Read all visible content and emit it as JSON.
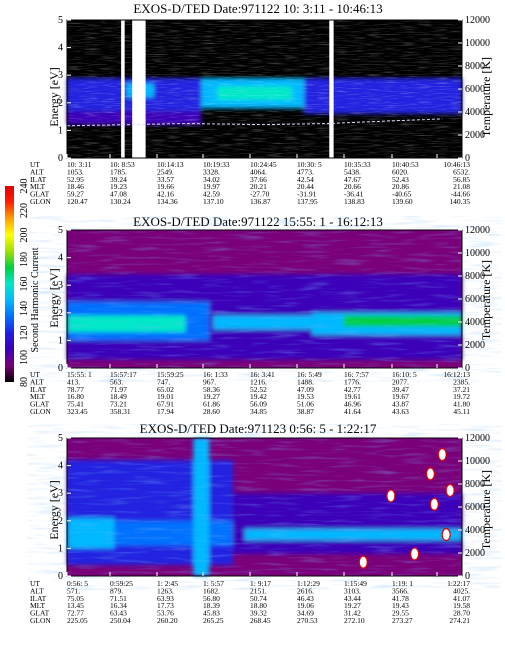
{
  "chart_data": [
    {
      "type": "heatmap",
      "title": "EXOS-D/TED   Date:971122  10: 3:11 - 10:46:13",
      "ylabel": "Energy [eV]",
      "ylim": [
        0,
        5
      ],
      "yticks": [
        "0",
        "1",
        "2",
        "3",
        "4",
        "5"
      ],
      "y2label": "Temperature [K]",
      "y2lim": [
        0,
        12000
      ],
      "y2ticks": [
        "0",
        "2000",
        "4000",
        "6000",
        "8000",
        "10000",
        "12000"
      ],
      "table": {
        "row_labels": [
          "UT",
          "ALT",
          "ILAT",
          "MLT",
          "GLAT",
          "GLON"
        ],
        "columns": [
          [
            "10: 3:11",
            "1053.",
            "52.95",
            "18.46",
            "59.27",
            "120.47"
          ],
          [
            "10: 8:53",
            "1785.",
            "39.24",
            "19.23",
            "47.08",
            "130.24"
          ],
          [
            "10:14:13",
            "2549.",
            "33.57",
            "19.66",
            "42.16",
            "134.36"
          ],
          [
            "10:19:33",
            "3328.",
            "34.02",
            "19.97",
            "42.59",
            "137.10"
          ],
          [
            "10:24:45",
            "4064.",
            "37.66",
            "20.21",
            "-27.70",
            "136.87"
          ],
          [
            "10:30: 5",
            "4773.",
            "42.54",
            "20.44",
            "-31.91",
            "137.95"
          ],
          [
            "10:35:33",
            "5438.",
            "47.67",
            "20.66",
            "-36.41",
            "138.83"
          ],
          [
            "10:40:53",
            "6020.",
            "52.43",
            "20.86",
            "-40.65",
            "139.60"
          ],
          [
            "10:46:13",
            "6532.",
            "56.85",
            "21.08",
            "-44.66",
            "140.35"
          ]
        ]
      },
      "background_level": 80,
      "bands": [
        {
          "x0": 0.0,
          "x1": 0.34,
          "y0": 1.7,
          "y1": 2.9,
          "level": 125
        },
        {
          "x0": 0.15,
          "x1": 0.22,
          "y0": 2.2,
          "y1": 2.7,
          "level": 140
        },
        {
          "x0": 0.34,
          "x1": 0.6,
          "y0": 1.8,
          "y1": 2.9,
          "level": 140
        },
        {
          "x0": 0.38,
          "x1": 0.57,
          "y0": 2.1,
          "y1": 2.6,
          "level": 160
        },
        {
          "x0": 0.6,
          "x1": 1.0,
          "y0": 1.6,
          "y1": 2.9,
          "level": 118
        },
        {
          "x0": 0.0,
          "x1": 0.34,
          "y0": 1.2,
          "y1": 1.7,
          "level": 105
        }
      ],
      "gaps": [
        [
          0.137,
          0.146
        ],
        [
          0.165,
          0.199
        ],
        [
          0.664,
          0.675
        ]
      ],
      "temperature": [
        {
          "x": 0.0,
          "t": 2800
        },
        {
          "x": 0.15,
          "t": 2900
        },
        {
          "x": 0.3,
          "t": 3000
        },
        {
          "x": 0.5,
          "t": 2900
        },
        {
          "x": 0.66,
          "t": 3000
        },
        {
          "x": 0.8,
          "t": 3200
        },
        {
          "x": 0.95,
          "t": 3400
        }
      ]
    },
    {
      "type": "heatmap",
      "title": "EXOS-D/TED   Date:971122  15:55: 1 - 16:12:13",
      "ylabel": "Energy [eV]",
      "ylim": [
        0,
        5
      ],
      "yticks": [
        "0",
        "1",
        "2",
        "3",
        "4",
        "5"
      ],
      "y2label": "Temperature [K]",
      "y2lim": [
        0,
        12000
      ],
      "y2ticks": [
        "0",
        "2000",
        "4000",
        "6000",
        "8000",
        "10000",
        "12000"
      ],
      "table": {
        "row_labels": [
          "UT",
          "ALT",
          "ILAT",
          "MLT",
          "GLAT",
          "GLON"
        ],
        "columns": [
          [
            "15:55: 1",
            "413.",
            "78.77",
            "16.80",
            "75.41",
            "323.45"
          ],
          [
            "15:57:17",
            "563.",
            "71.97",
            "18.49",
            "73.21",
            "358.31"
          ],
          [
            "15:59:25",
            "747.",
            "65.02",
            "19.01",
            "67.91",
            "17.94"
          ],
          [
            "16: 1:33",
            "967.",
            "58.36",
            "19.27",
            "61.86",
            "28.60"
          ],
          [
            "16: 3:41",
            "1216.",
            "52.52",
            "19.42",
            "56.09",
            "34.85"
          ],
          [
            "16: 5:49",
            "1488.",
            "47.09",
            "19.53",
            "51.06",
            "38.87"
          ],
          [
            "16: 7:57",
            "1776.",
            "42.77",
            "19.61",
            "46.96",
            "41.64"
          ],
          [
            "16:10: 5",
            "2077.",
            "39.47",
            "19.67",
            "43.87",
            "43.63"
          ],
          [
            "16:12:13",
            "2385.",
            "37.21",
            "19.72",
            "41.80",
            "45.11"
          ]
        ]
      },
      "background_level": 95,
      "bands": [
        {
          "x0": 0.0,
          "x1": 1.0,
          "y0": 0.3,
          "y1": 3.4,
          "level": 112
        },
        {
          "x0": 0.0,
          "x1": 0.36,
          "y0": 1.0,
          "y1": 2.4,
          "level": 135
        },
        {
          "x0": 0.0,
          "x1": 0.3,
          "y0": 1.3,
          "y1": 1.9,
          "level": 160
        },
        {
          "x0": 0.37,
          "x1": 0.62,
          "y0": 1.4,
          "y1": 1.9,
          "level": 140
        },
        {
          "x0": 0.62,
          "x1": 1.0,
          "y0": 1.2,
          "y1": 2.0,
          "level": 140
        },
        {
          "x0": 0.7,
          "x1": 1.0,
          "y0": 1.5,
          "y1": 1.9,
          "level": 170
        }
      ],
      "gaps": [],
      "temperature": []
    },
    {
      "type": "heatmap",
      "title": "EXOS-D/TED   Date:971123  0:56: 5 - 1:22:17",
      "ylabel": "Energy [eV]",
      "ylim": [
        0,
        5
      ],
      "yticks": [
        "0",
        "1",
        "2",
        "3",
        "4",
        "5"
      ],
      "y2label": "Temperature [K]",
      "y2lim": [
        0,
        12000
      ],
      "y2ticks": [
        "0",
        "2000",
        "4000",
        "6000",
        "8000",
        "10000",
        "12000"
      ],
      "table": {
        "row_labels": [
          "UT",
          "ALT",
          "ILAT",
          "MLT",
          "GLAT",
          "GLON"
        ],
        "columns": [
          [
            "0:56: 5",
            "571.",
            "75.05",
            "13.45",
            "72.77",
            "225.05"
          ],
          [
            "0:59:25",
            "879.",
            "71.51",
            "16.34",
            "63.43",
            "250.04"
          ],
          [
            "1: 2:45",
            "1263.",
            "63.93",
            "17.73",
            "53.76",
            "260.20"
          ],
          [
            "1: 5:57",
            "1682.",
            "56.80",
            "18.39",
            "45.83",
            "265.25"
          ],
          [
            "1: 9:17",
            "2151.",
            "50.74",
            "18.80",
            "39.32",
            "268.45"
          ],
          [
            "1:12:29",
            "2616.",
            "46.43",
            "19.06",
            "34.69",
            "270.53"
          ],
          [
            "1:15:49",
            "3103.",
            "43.44",
            "19.27",
            "31.42",
            "272.10"
          ],
          [
            "1:19: 1",
            "3566.",
            "41.78",
            "19.43",
            "29.55",
            "273.27"
          ],
          [
            "1:22:17",
            "4025.",
            "41.07",
            "19.58",
            "28.70",
            "274.21"
          ]
        ]
      },
      "background_level": 88,
      "bands": [
        {
          "x0": 0.0,
          "x1": 0.42,
          "y0": 0.4,
          "y1": 4.2,
          "level": 115
        },
        {
          "x0": 0.0,
          "x1": 0.12,
          "y0": 1.0,
          "y1": 2.1,
          "level": 150
        },
        {
          "x0": 0.12,
          "x1": 0.42,
          "y0": 1.1,
          "y1": 2.0,
          "level": 135
        },
        {
          "x0": 0.32,
          "x1": 0.36,
          "y0": 0.0,
          "y1": 5.0,
          "level": 150
        },
        {
          "x0": 0.42,
          "x1": 1.0,
          "y0": 0.8,
          "y1": 3.0,
          "level": 110
        },
        {
          "x0": 0.45,
          "x1": 1.0,
          "y0": 1.3,
          "y1": 1.7,
          "level": 140
        }
      ],
      "gaps": [],
      "temperature": [],
      "hot_spots": [
        {
          "x": 0.92,
          "y": 3.7
        },
        {
          "x": 0.93,
          "y": 2.6
        },
        {
          "x": 0.95,
          "y": 4.4
        },
        {
          "x": 0.96,
          "y": 1.5
        },
        {
          "x": 0.88,
          "y": 0.8
        },
        {
          "x": 0.75,
          "y": 0.5
        },
        {
          "x": 0.82,
          "y": 2.9
        },
        {
          "x": 0.97,
          "y": 3.1
        }
      ]
    }
  ],
  "colorbar": {
    "label": "Second Harmonic Current",
    "ticks": [
      "80",
      "100",
      "120",
      "140",
      "160",
      "180",
      "200",
      "220",
      "240"
    ],
    "min": 80,
    "max": 240,
    "colors": [
      "#000000",
      "#7a007a",
      "#3a00b8",
      "#2020e0",
      "#0070ff",
      "#00b8ff",
      "#00e8c8",
      "#00d040",
      "#a0e000",
      "#ffff00",
      "#ffa000",
      "#ff2000",
      "#e00000"
    ]
  }
}
